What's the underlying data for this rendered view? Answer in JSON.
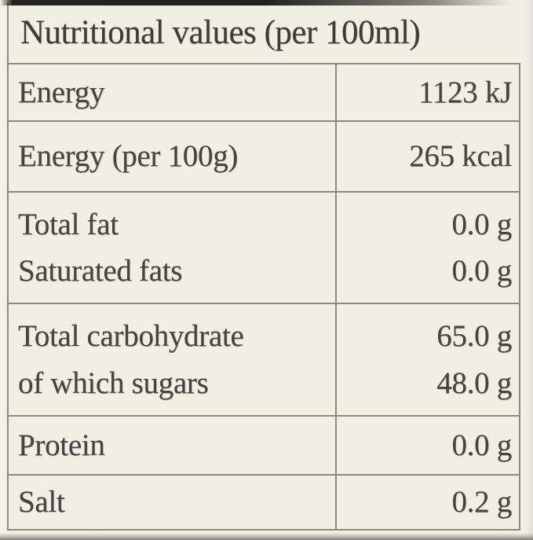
{
  "table": {
    "title": "Nutritional values (per 100ml)",
    "rows": [
      {
        "name": "energy-kj",
        "label_lines": [
          "Energy"
        ],
        "value_lines": [
          "1123 kJ"
        ]
      },
      {
        "name": "energy-kcal",
        "label_lines": [
          "Energy (per 100g)"
        ],
        "value_lines": [
          "265 kcal"
        ]
      },
      {
        "name": "fat",
        "label_lines": [
          "Total fat",
          "Saturated fats"
        ],
        "value_lines": [
          "0.0 g",
          "0.0 g"
        ]
      },
      {
        "name": "carbohydrate",
        "label_lines": [
          "Total carbohydrate",
          "of which sugars"
        ],
        "value_lines": [
          "65.0 g",
          "48.0 g"
        ]
      },
      {
        "name": "protein",
        "label_lines": [
          "Protein"
        ],
        "value_lines": [
          "0.0 g"
        ]
      },
      {
        "name": "salt",
        "label_lines": [
          "Salt"
        ],
        "value_lines": [
          "0.2 g"
        ]
      }
    ]
  },
  "colors": {
    "label_background": "#f0efe3",
    "grid_line": "#8a8a7b",
    "text": "#45453f",
    "top_edge": "#1b1b19"
  }
}
